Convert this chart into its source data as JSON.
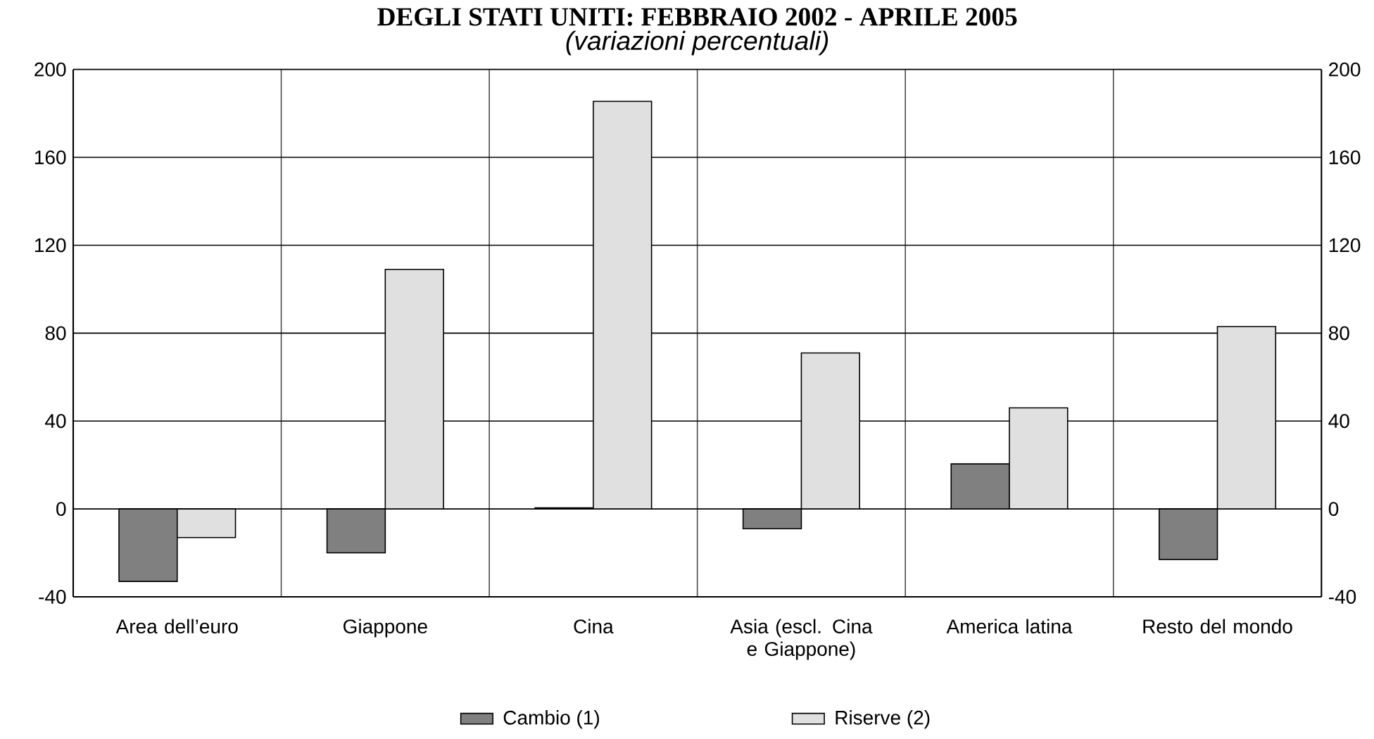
{
  "chart_data": {
    "type": "bar",
    "title": "DEGLI STATI UNITI: FEBBRAIO 2002 - APRILE 2005",
    "subtitle": "(variazioni percentuali)",
    "categories": [
      "Area dell’euro",
      "Giappone",
      "Cina",
      "Asia (escl. Cina e Giappone)",
      "America latina",
      "Resto del mondo"
    ],
    "series": [
      {
        "name": "Cambio (1)",
        "color": "#808080",
        "values": [
          -33,
          -20,
          0.5,
          -9,
          20.5,
          -23
        ]
      },
      {
        "name": "Riserve (2)",
        "color": "#e0e0e0",
        "values": [
          -13,
          109,
          185.5,
          71,
          46,
          83
        ]
      }
    ],
    "ylim": [
      -40,
      200
    ],
    "yticks": [
      -40,
      0,
      40,
      80,
      120,
      160,
      200
    ],
    "y2lim": [
      -40,
      200
    ],
    "y2ticks": [
      -40,
      0,
      40,
      80,
      120,
      160,
      200
    ],
    "grid": true,
    "legend": "bottom"
  }
}
